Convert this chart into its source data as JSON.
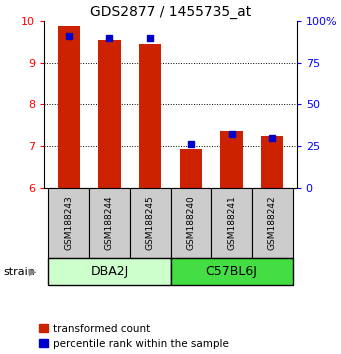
{
  "title": "GDS2877 / 1455735_at",
  "samples": [
    "GSM188243",
    "GSM188244",
    "GSM188245",
    "GSM188240",
    "GSM188241",
    "GSM188242"
  ],
  "transformed_counts": [
    9.88,
    9.55,
    9.45,
    6.92,
    7.35,
    7.25
  ],
  "percentile_ranks": [
    91,
    90,
    90,
    26,
    32,
    30
  ],
  "ylim": [
    6,
    10
  ],
  "yticks": [
    6,
    7,
    8,
    9,
    10
  ],
  "y2lim": [
    0,
    100
  ],
  "y2ticks": [
    0,
    25,
    50,
    75,
    100
  ],
  "y2ticklabels": [
    "0",
    "25",
    "50",
    "75",
    "100%"
  ],
  "bar_color": "#cc2200",
  "dot_color": "#0000cc",
  "bar_bottom": 6,
  "legend_red_label": "transformed count",
  "legend_blue_label": "percentile rank within the sample",
  "group_info": [
    {
      "name": "DBA2J",
      "start": 0,
      "end": 2,
      "color": "#ccffcc"
    },
    {
      "name": "C57BL6J",
      "start": 3,
      "end": 5,
      "color": "#44dd44"
    }
  ],
  "sample_box_color": "#cccccc",
  "group_border_color": "#000000",
  "fig_width": 3.41,
  "fig_height": 3.54,
  "dpi": 100
}
